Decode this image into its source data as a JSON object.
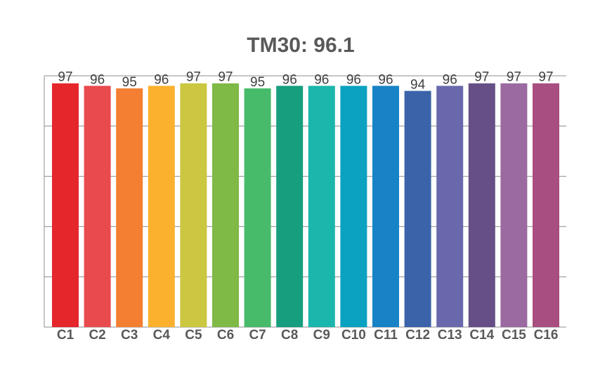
{
  "chart_data": {
    "type": "bar",
    "title": "TM30: 96.1",
    "categories": [
      "C1",
      "C2",
      "C3",
      "C4",
      "C5",
      "C6",
      "C7",
      "C8",
      "C9",
      "C10",
      "C11",
      "C12",
      "C13",
      "C14",
      "C15",
      "C16"
    ],
    "values": [
      97,
      96,
      95,
      96,
      97,
      97,
      95,
      96,
      96,
      96,
      96,
      94,
      96,
      97,
      97,
      97
    ],
    "colors": [
      "#e5262b",
      "#e84a4e",
      "#f47f32",
      "#fbb12e",
      "#cbc740",
      "#7fb946",
      "#47bb6a",
      "#169e7e",
      "#1bb6ac",
      "#0aa2c0",
      "#1783c6",
      "#3a63a9",
      "#6a68ad",
      "#664f86",
      "#9b6aa1",
      "#a94e80"
    ],
    "ylim": [
      0,
      100
    ],
    "y_gridlines": 5,
    "y_tick_labels_shown": false,
    "grid": true,
    "data_labels": true,
    "xlabel": "",
    "ylabel": ""
  }
}
